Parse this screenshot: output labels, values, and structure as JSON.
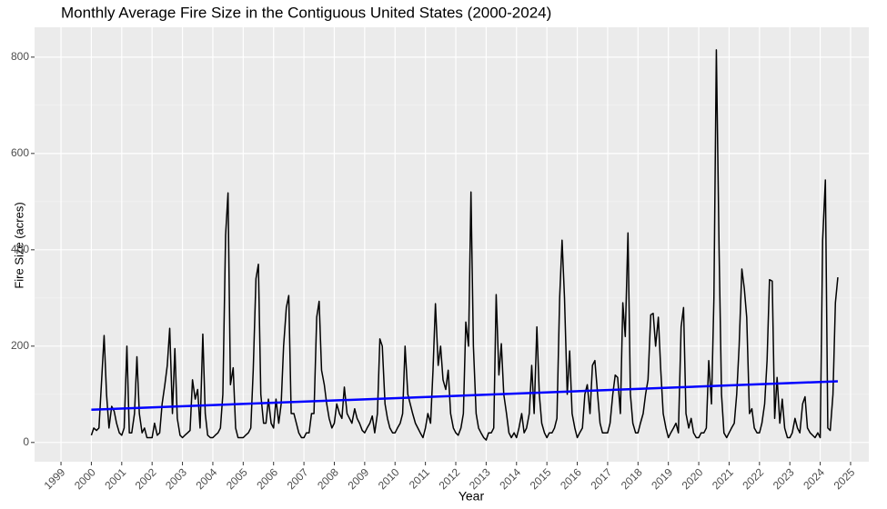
{
  "chart_data": {
    "type": "line",
    "title": "Monthly Average Fire Size in the Contiguous United States (2000-2024)",
    "x_label": "Year",
    "y_label": "Fire Size (acres)",
    "xlim": [
      1998.13,
      2025.6
    ],
    "ylim": [
      -40,
      862
    ],
    "xticks": [
      1999,
      2000,
      2001,
      2002,
      2003,
      2004,
      2005,
      2006,
      2007,
      2008,
      2009,
      2010,
      2011,
      2012,
      2013,
      2014,
      2015,
      2016,
      2017,
      2018,
      2019,
      2020,
      2021,
      2022,
      2023,
      2024,
      2025
    ],
    "yticks": [
      0,
      200,
      400,
      600,
      800
    ],
    "grid": true,
    "background": "#ebebeb",
    "series": [
      {
        "color": "#000000",
        "x": [
          2000,
          2000.08,
          2000.17,
          2000.25,
          2000.33,
          2000.42,
          2000.5,
          2000.58,
          2000.67,
          2000.75,
          2000.83,
          2000.92,
          2001,
          2001.08,
          2001.17,
          2001.25,
          2001.33,
          2001.42,
          2001.5,
          2001.58,
          2001.67,
          2001.75,
          2001.83,
          2001.92,
          2002,
          2002.08,
          2002.17,
          2002.25,
          2002.33,
          2002.42,
          2002.5,
          2002.58,
          2002.67,
          2002.75,
          2002.83,
          2002.92,
          2003,
          2003.08,
          2003.17,
          2003.25,
          2003.33,
          2003.42,
          2003.5,
          2003.58,
          2003.67,
          2003.75,
          2003.83,
          2003.92,
          2004,
          2004.08,
          2004.17,
          2004.25,
          2004.33,
          2004.42,
          2004.5,
          2004.58,
          2004.67,
          2004.75,
          2004.83,
          2004.92,
          2005,
          2005.08,
          2005.17,
          2005.25,
          2005.33,
          2005.42,
          2005.5,
          2005.58,
          2005.67,
          2005.75,
          2005.83,
          2005.92,
          2006,
          2006.08,
          2006.17,
          2006.25,
          2006.33,
          2006.42,
          2006.5,
          2006.58,
          2006.67,
          2006.75,
          2006.83,
          2006.92,
          2007,
          2007.08,
          2007.17,
          2007.25,
          2007.33,
          2007.42,
          2007.5,
          2007.58,
          2007.67,
          2007.75,
          2007.83,
          2007.92,
          2008,
          2008.08,
          2008.17,
          2008.25,
          2008.33,
          2008.42,
          2008.5,
          2008.58,
          2008.67,
          2008.75,
          2008.83,
          2008.92,
          2009,
          2009.08,
          2009.17,
          2009.25,
          2009.33,
          2009.42,
          2009.5,
          2009.58,
          2009.67,
          2009.75,
          2009.83,
          2009.92,
          2010,
          2010.08,
          2010.17,
          2010.25,
          2010.33,
          2010.42,
          2010.5,
          2010.58,
          2010.67,
          2010.75,
          2010.83,
          2010.92,
          2011,
          2011.08,
          2011.17,
          2011.25,
          2011.33,
          2011.42,
          2011.5,
          2011.58,
          2011.67,
          2011.75,
          2011.83,
          2011.92,
          2012,
          2012.08,
          2012.17,
          2012.25,
          2012.33,
          2012.42,
          2012.5,
          2012.58,
          2012.67,
          2012.75,
          2012.83,
          2012.92,
          2013,
          2013.08,
          2013.17,
          2013.25,
          2013.33,
          2013.42,
          2013.5,
          2013.58,
          2013.67,
          2013.75,
          2013.83,
          2013.92,
          2014,
          2014.08,
          2014.17,
          2014.25,
          2014.33,
          2014.42,
          2014.5,
          2014.58,
          2014.67,
          2014.75,
          2014.83,
          2014.92,
          2015,
          2015.08,
          2015.17,
          2015.25,
          2015.33,
          2015.42,
          2015.5,
          2015.58,
          2015.67,
          2015.75,
          2015.83,
          2015.92,
          2016,
          2016.08,
          2016.17,
          2016.25,
          2016.33,
          2016.42,
          2016.5,
          2016.58,
          2016.67,
          2016.75,
          2016.83,
          2016.92,
          2017,
          2017.08,
          2017.17,
          2017.25,
          2017.33,
          2017.42,
          2017.5,
          2017.58,
          2017.67,
          2017.75,
          2017.83,
          2017.92,
          2018,
          2018.08,
          2018.17,
          2018.25,
          2018.33,
          2018.42,
          2018.5,
          2018.58,
          2018.67,
          2018.75,
          2018.83,
          2018.92,
          2019,
          2019.08,
          2019.17,
          2019.25,
          2019.33,
          2019.42,
          2019.5,
          2019.58,
          2019.67,
          2019.75,
          2019.83,
          2019.92,
          2020,
          2020.08,
          2020.17,
          2020.25,
          2020.33,
          2020.42,
          2020.5,
          2020.58,
          2020.67,
          2020.75,
          2020.83,
          2020.92,
          2021,
          2021.08,
          2021.17,
          2021.25,
          2021.33,
          2021.42,
          2021.5,
          2021.58,
          2021.67,
          2021.75,
          2021.83,
          2021.92,
          2022,
          2022.08,
          2022.17,
          2022.25,
          2022.33,
          2022.42,
          2022.5,
          2022.58,
          2022.67,
          2022.75,
          2022.83,
          2022.92,
          2023,
          2023.08,
          2023.17,
          2023.25,
          2023.33,
          2023.42,
          2023.5,
          2023.58,
          2023.67,
          2023.75,
          2023.83,
          2023.92,
          2024,
          2024.08,
          2024.17,
          2024.25,
          2024.33,
          2024.42,
          2024.5,
          2024.58
        ],
        "values": [
          15,
          30,
          25,
          30,
          120,
          222,
          100,
          30,
          75,
          65,
          40,
          20,
          15,
          30,
          200,
          20,
          20,
          60,
          178,
          60,
          20,
          30,
          10,
          10,
          10,
          40,
          15,
          20,
          80,
          120,
          160,
          237,
          60,
          195,
          50,
          15,
          10,
          15,
          20,
          25,
          130,
          90,
          110,
          30,
          225,
          60,
          15,
          10,
          10,
          15,
          20,
          30,
          100,
          430,
          518,
          120,
          155,
          30,
          10,
          10,
          10,
          15,
          20,
          30,
          150,
          340,
          370,
          100,
          40,
          40,
          90,
          40,
          30,
          90,
          40,
          80,
          200,
          280,
          305,
          60,
          60,
          40,
          20,
          10,
          10,
          20,
          20,
          60,
          60,
          260,
          293,
          150,
          120,
          80,
          50,
          30,
          40,
          80,
          60,
          50,
          115,
          60,
          50,
          40,
          70,
          50,
          40,
          25,
          20,
          30,
          40,
          55,
          20,
          60,
          215,
          200,
          80,
          50,
          30,
          20,
          20,
          30,
          40,
          60,
          200,
          100,
          80,
          60,
          40,
          30,
          20,
          10,
          30,
          60,
          40,
          150,
          288,
          160,
          200,
          130,
          110,
          150,
          60,
          30,
          20,
          15,
          30,
          60,
          250,
          200,
          520,
          200,
          60,
          30,
          20,
          10,
          5,
          20,
          20,
          30,
          307,
          140,
          205,
          100,
          60,
          20,
          10,
          20,
          10,
          30,
          60,
          20,
          30,
          60,
          160,
          60,
          240,
          100,
          40,
          20,
          10,
          20,
          20,
          30,
          50,
          300,
          420,
          300,
          100,
          190,
          60,
          30,
          10,
          20,
          30,
          100,
          120,
          60,
          160,
          170,
          100,
          40,
          20,
          20,
          20,
          40,
          100,
          140,
          135,
          60,
          290,
          220,
          435,
          100,
          40,
          20,
          20,
          40,
          60,
          100,
          130,
          265,
          268,
          200,
          260,
          150,
          60,
          30,
          10,
          20,
          30,
          40,
          20,
          240,
          280,
          60,
          30,
          50,
          20,
          10,
          10,
          20,
          20,
          30,
          170,
          80,
          300,
          815,
          400,
          100,
          20,
          10,
          20,
          30,
          40,
          100,
          200,
          360,
          320,
          260,
          60,
          70,
          30,
          20,
          20,
          40,
          80,
          170,
          338,
          335,
          50,
          135,
          40,
          90,
          30,
          10,
          10,
          20,
          50,
          30,
          20,
          80,
          95,
          30,
          20,
          15,
          10,
          20,
          10,
          420,
          545,
          30,
          25,
          100,
          290,
          343
        ]
      },
      {
        "color": "#0000ff",
        "x": [
          2000,
          2024.58
        ],
        "values": [
          68,
          127
        ]
      }
    ]
  }
}
